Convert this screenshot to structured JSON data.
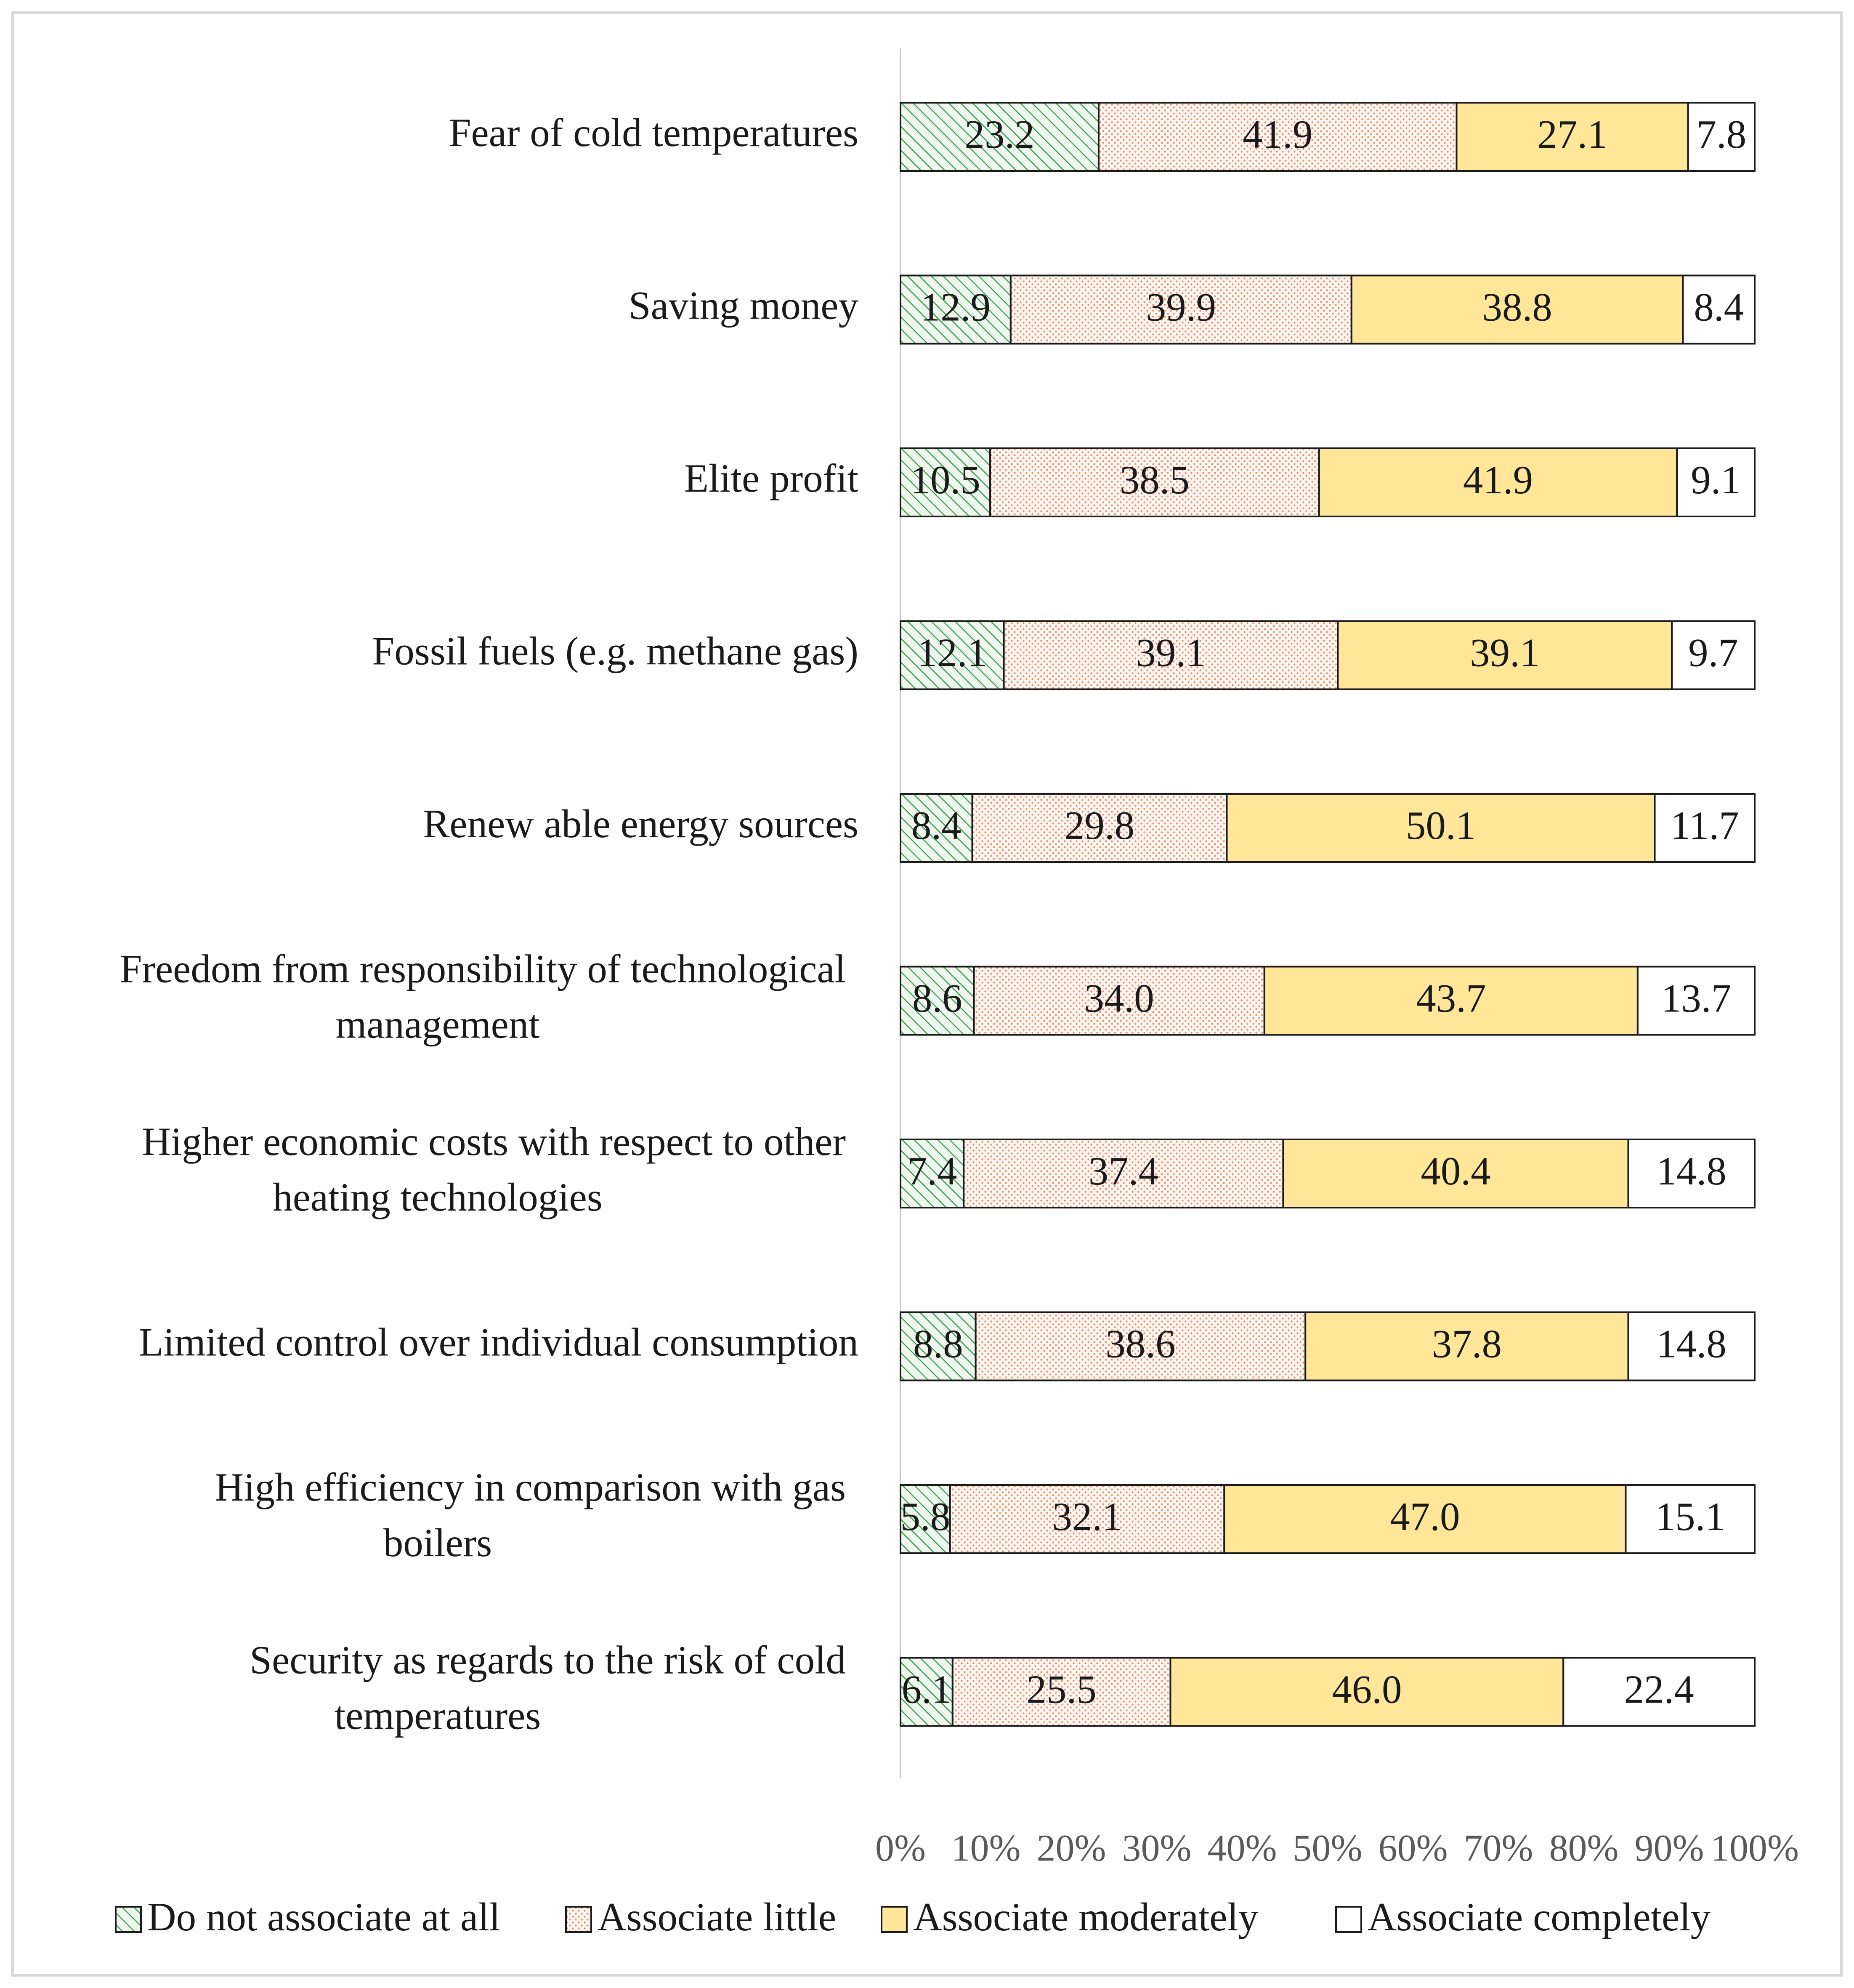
{
  "chart_data": {
    "type": "bar",
    "orientation": "horizontal",
    "stacked": "percent",
    "categories": [
      [
        "Fear of cold temperatures"
      ],
      [
        "Saving money"
      ],
      [
        "Elite profit"
      ],
      [
        "Fossil fuels (e.g. methane gas)"
      ],
      [
        "Renew able energy sources"
      ],
      [
        "Freedom from responsibility of technological",
        "management"
      ],
      [
        "Higher economic costs with respect to other",
        "heating technologies"
      ],
      [
        "Limited control over individual consumption"
      ],
      [
        "High efficiency in comparison with gas",
        "boilers"
      ],
      [
        "Security as regards to the risk of cold",
        "temperatures"
      ]
    ],
    "series": [
      {
        "name": "Do not associate at all",
        "pattern": "diagonal-hatch",
        "color": "#2e8b3e",
        "fill": "#eef7ee",
        "values": [
          23.2,
          12.9,
          10.5,
          12.1,
          8.4,
          8.6,
          7.4,
          8.8,
          5.8,
          6.1
        ],
        "labels": [
          "23.2",
          "12.9",
          "10.5",
          "12.1",
          "8.4",
          "8.6",
          "7.4",
          "8.8",
          "5.8",
          "6.1"
        ]
      },
      {
        "name": "Associate little",
        "pattern": "dotted",
        "color": "#e8744a",
        "fill": "#fdf3ee",
        "values": [
          41.9,
          39.9,
          38.5,
          39.1,
          29.8,
          34.0,
          37.4,
          38.6,
          32.1,
          25.5
        ],
        "labels": [
          "41.9",
          "39.9",
          "38.5",
          "39.1",
          "29.8",
          "34.0",
          "37.4",
          "38.6",
          "32.1",
          "25.5"
        ]
      },
      {
        "name": "Associate moderately",
        "pattern": "solid",
        "color": "#ffe699",
        "fill": "#ffe699",
        "values": [
          27.1,
          38.8,
          41.9,
          39.1,
          50.1,
          43.7,
          40.4,
          37.8,
          47.0,
          46.0
        ],
        "labels": [
          "27.1",
          "38.8",
          "41.9",
          "39.1",
          "50.1",
          "43.7",
          "40.4",
          "37.8",
          "47.0",
          "46.0"
        ]
      },
      {
        "name": "Associate completely",
        "pattern": "solid",
        "color": "#ffffff",
        "fill": "#ffffff",
        "values": [
          7.8,
          8.4,
          9.1,
          9.7,
          11.7,
          13.7,
          14.8,
          14.8,
          15.1,
          22.4
        ],
        "labels": [
          "7.8",
          "8.4",
          "9.1",
          "9.7",
          "11.7",
          "13.7",
          "14.8",
          "14.8",
          "15.1",
          "22.4"
        ]
      }
    ],
    "x_ticks": [
      "0%",
      "10%",
      "20%",
      "30%",
      "40%",
      "50%",
      "60%",
      "70%",
      "80%",
      "90%",
      "100%"
    ],
    "xlim": [
      0,
      100
    ],
    "grid": false,
    "legend_position": "bottom",
    "title": "",
    "xlabel": "",
    "ylabel": ""
  }
}
